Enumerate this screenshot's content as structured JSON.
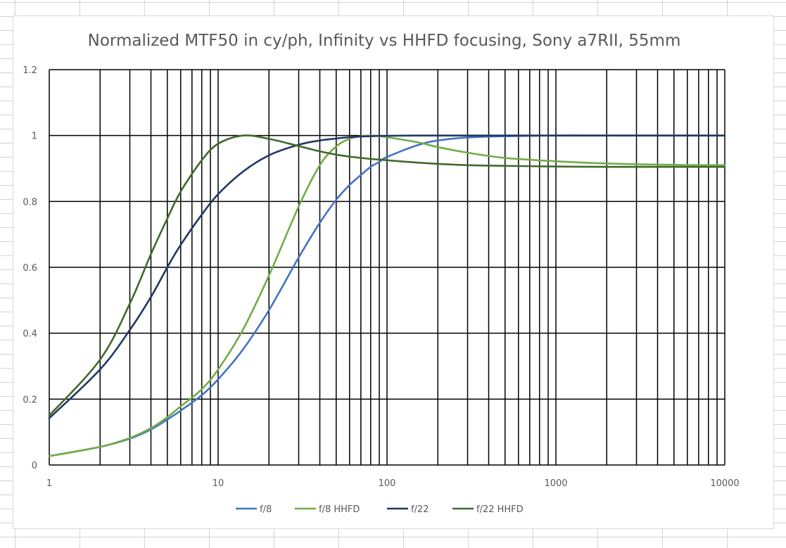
{
  "chart_data": {
    "type": "line",
    "title": "Normalized MTF50 in cy/ph, Infinity vs HHFD focusing, Sony a7RII, 55mm",
    "xscale": "log",
    "xlim": [
      1,
      10000
    ],
    "ylim": [
      0,
      1.2
    ],
    "x_ticks": [
      1,
      10,
      100,
      1000,
      10000
    ],
    "x_tick_labels": [
      "1",
      "10",
      "100",
      "1000",
      "10000"
    ],
    "y_ticks": [
      0,
      0.2,
      0.4,
      0.6,
      0.8,
      1,
      1.2
    ],
    "y_tick_labels": [
      "0",
      "0.2",
      "0.4",
      "0.6",
      "0.8",
      "1",
      "1.2"
    ],
    "grid": true,
    "legend_position": "bottom",
    "x": [
      1,
      2,
      3,
      4,
      5,
      6,
      8,
      10,
      14,
      20,
      30,
      40,
      50,
      60,
      70,
      80,
      90,
      100,
      150,
      200,
      300,
      500,
      1000,
      2000,
      5000,
      10000
    ],
    "series": [
      {
        "name": "f/8",
        "color": "#4472C4",
        "values": [
          0.027,
          0.055,
          0.08,
          0.108,
          0.138,
          0.165,
          0.212,
          0.26,
          0.35,
          0.47,
          0.63,
          0.735,
          0.805,
          0.85,
          0.88,
          0.905,
          0.92,
          0.935,
          0.97,
          0.985,
          0.994,
          0.998,
          1.0,
          1.0,
          1.0,
          1.0
        ]
      },
      {
        "name": "f/8 HHFD",
        "color": "#70AD47",
        "values": [
          0.027,
          0.055,
          0.082,
          0.112,
          0.145,
          0.178,
          0.23,
          0.29,
          0.41,
          0.575,
          0.785,
          0.91,
          0.967,
          0.99,
          0.998,
          1.0,
          0.998,
          0.995,
          0.98,
          0.965,
          0.948,
          0.932,
          0.922,
          0.915,
          0.911,
          0.91
        ]
      },
      {
        "name": "f/22",
        "color": "#203864",
        "values": [
          0.142,
          0.29,
          0.41,
          0.51,
          0.6,
          0.668,
          0.76,
          0.822,
          0.89,
          0.94,
          0.972,
          0.985,
          0.991,
          0.995,
          0.997,
          0.998,
          0.999,
          0.999,
          1.0,
          1.0,
          1.0,
          1.0,
          1.0,
          1.0,
          1.0,
          1.0
        ]
      },
      {
        "name": "f/22 HHFD",
        "color": "#43682B",
        "values": [
          0.15,
          0.32,
          0.49,
          0.64,
          0.748,
          0.83,
          0.925,
          0.975,
          1.0,
          0.99,
          0.968,
          0.952,
          0.942,
          0.936,
          0.932,
          0.929,
          0.927,
          0.925,
          0.918,
          0.914,
          0.91,
          0.908,
          0.906,
          0.905,
          0.905,
          0.905
        ]
      }
    ]
  }
}
